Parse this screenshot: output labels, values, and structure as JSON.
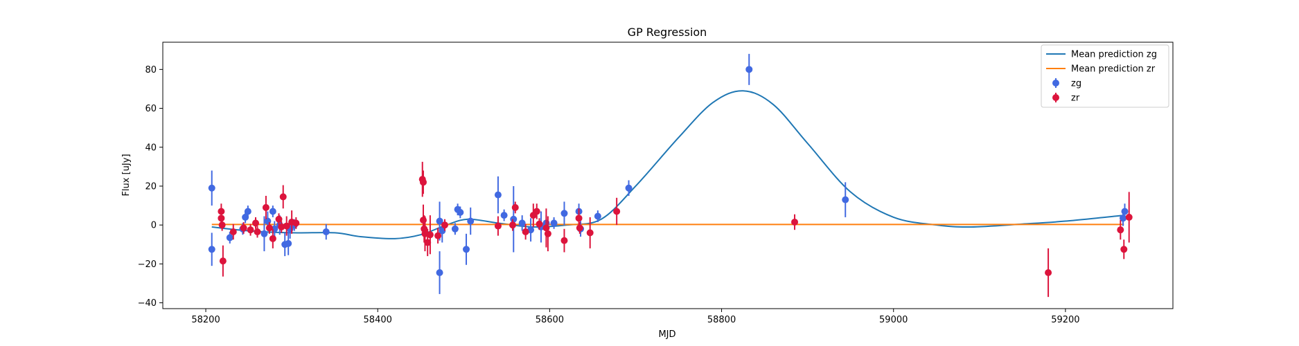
{
  "chart_data": {
    "type": "scatter",
    "title": "GP Regression",
    "xlabel": "MJD",
    "ylabel": "Flux [uJy]",
    "xlim": [
      58150,
      59325
    ],
    "ylim": [
      -43,
      94
    ],
    "xticks": [
      58200,
      58400,
      58600,
      58800,
      59000,
      59200
    ],
    "yticks": [
      -40,
      -20,
      0,
      20,
      40,
      60,
      80
    ],
    "grid": false,
    "legend_position": "top-right",
    "legend": [
      "Mean prediction zg",
      "Mean prediction zr",
      "zg",
      "zr"
    ],
    "series": [
      {
        "name": "Mean prediction zg",
        "kind": "line",
        "color": "#1f77b4",
        "x": [
          58207,
          58250,
          58300,
          58350,
          58380,
          58420,
          58450,
          58480,
          58505,
          58540,
          58580,
          58620,
          58660,
          58700,
          58750,
          58790,
          58825,
          58860,
          58900,
          58950,
          59000,
          59050,
          59090,
          59150,
          59200,
          59268
        ],
        "y": [
          -1,
          -3,
          -4,
          -4,
          -6,
          -7,
          -5,
          0,
          3,
          1,
          -1,
          0,
          3,
          20,
          45,
          63,
          69,
          62,
          42,
          17,
          4,
          0,
          -1,
          0.5,
          2,
          5
        ]
      },
      {
        "name": "Mean prediction zr",
        "kind": "line",
        "color": "#ff7f0e",
        "x": [
          58207,
          59268
        ],
        "y": [
          0.3,
          0.3
        ]
      },
      {
        "name": "zg",
        "kind": "errorbar",
        "color": "#4169e1",
        "points": [
          {
            "x": 58207,
            "y": 19,
            "err": 9
          },
          {
            "x": 58207,
            "y": -12.5,
            "err": 8.5
          },
          {
            "x": 58228,
            "y": -6.5,
            "err": 3
          },
          {
            "x": 58243,
            "y": -2,
            "err": 3
          },
          {
            "x": 58246,
            "y": 4,
            "err": 3
          },
          {
            "x": 58249,
            "y": 7,
            "err": 3
          },
          {
            "x": 58268,
            "y": -4.5,
            "err": 9
          },
          {
            "x": 58272,
            "y": 2,
            "err": 5
          },
          {
            "x": 58278,
            "y": 7,
            "err": 3
          },
          {
            "x": 58280,
            "y": -2,
            "err": 4
          },
          {
            "x": 58286,
            "y": 0,
            "err": 5
          },
          {
            "x": 58292,
            "y": -10,
            "err": 6
          },
          {
            "x": 58296,
            "y": -9.5,
            "err": 6
          },
          {
            "x": 58298,
            "y": -2,
            "err": 5
          },
          {
            "x": 58303,
            "y": 0,
            "err": 3
          },
          {
            "x": 58340,
            "y": -3.5,
            "err": 4
          },
          {
            "x": 58472,
            "y": -24.5,
            "err": 11
          },
          {
            "x": 58472,
            "y": 2,
            "err": 10
          },
          {
            "x": 58475,
            "y": -3,
            "err": 6
          },
          {
            "x": 58490,
            "y": -2,
            "err": 3
          },
          {
            "x": 58493,
            "y": 8,
            "err": 3
          },
          {
            "x": 58496,
            "y": 6.5,
            "err": 3
          },
          {
            "x": 58503,
            "y": -12.5,
            "err": 8
          },
          {
            "x": 58508,
            "y": 2,
            "err": 7
          },
          {
            "x": 58540,
            "y": 15.5,
            "err": 9.5
          },
          {
            "x": 58547,
            "y": 5,
            "err": 3
          },
          {
            "x": 58558,
            "y": 3,
            "err": 17
          },
          {
            "x": 58568,
            "y": 1,
            "err": 4
          },
          {
            "x": 58578,
            "y": -2.5,
            "err": 6
          },
          {
            "x": 58590,
            "y": -1,
            "err": 8
          },
          {
            "x": 58596,
            "y": 1,
            "err": 4
          },
          {
            "x": 58605,
            "y": 1,
            "err": 3
          },
          {
            "x": 58617,
            "y": 6,
            "err": 6
          },
          {
            "x": 58634,
            "y": 7,
            "err": 4
          },
          {
            "x": 58636,
            "y": -2,
            "err": 4
          },
          {
            "x": 58656,
            "y": 4.5,
            "err": 3
          },
          {
            "x": 58692,
            "y": 19,
            "err": 4
          },
          {
            "x": 58832,
            "y": 80,
            "err": 8
          },
          {
            "x": 58944,
            "y": 13,
            "err": 9
          },
          {
            "x": 59267,
            "y": 3.5,
            "err": 4
          },
          {
            "x": 59269,
            "y": 7,
            "err": 4
          }
        ]
      },
      {
        "name": "zr",
        "kind": "errorbar",
        "color": "#dc143c",
        "points": [
          {
            "x": 58218,
            "y": 7,
            "err": 4
          },
          {
            "x": 58218,
            "y": 3.5,
            "err": 4
          },
          {
            "x": 58219,
            "y": 0,
            "err": 3
          },
          {
            "x": 58220,
            "y": -18.5,
            "err": 8
          },
          {
            "x": 58232,
            "y": -3.5,
            "err": 4
          },
          {
            "x": 58244,
            "y": -1.5,
            "err": 3
          },
          {
            "x": 58252,
            "y": -2.5,
            "err": 3
          },
          {
            "x": 58258,
            "y": 1,
            "err": 3
          },
          {
            "x": 58260,
            "y": -3.5,
            "err": 3
          },
          {
            "x": 58270,
            "y": 9,
            "err": 6
          },
          {
            "x": 58274,
            "y": -1.5,
            "err": 3
          },
          {
            "x": 58278,
            "y": -7,
            "err": 5
          },
          {
            "x": 58285,
            "y": 3,
            "err": 3
          },
          {
            "x": 58288,
            "y": -1,
            "err": 3
          },
          {
            "x": 58290,
            "y": 14.5,
            "err": 6
          },
          {
            "x": 58294,
            "y": -0.5,
            "err": 5
          },
          {
            "x": 58300,
            "y": 1.5,
            "err": 6
          },
          {
            "x": 58305,
            "y": 1,
            "err": 3
          },
          {
            "x": 58452,
            "y": 23.5,
            "err": 9
          },
          {
            "x": 58453,
            "y": 22,
            "err": 6
          },
          {
            "x": 58453,
            "y": 2.5,
            "err": 8
          },
          {
            "x": 58454,
            "y": -2,
            "err": 7
          },
          {
            "x": 58455,
            "y": -4.5,
            "err": 9
          },
          {
            "x": 58458,
            "y": -9,
            "err": 7
          },
          {
            "x": 58461,
            "y": -5,
            "err": 10
          },
          {
            "x": 58470,
            "y": -5.5,
            "err": 4
          },
          {
            "x": 58478,
            "y": 0,
            "err": 3
          },
          {
            "x": 58540,
            "y": -0.5,
            "err": 5
          },
          {
            "x": 58557,
            "y": 0,
            "err": 3
          },
          {
            "x": 58560,
            "y": 9,
            "err": 3
          },
          {
            "x": 58572,
            "y": -3.5,
            "err": 4
          },
          {
            "x": 58581,
            "y": 5,
            "err": 6
          },
          {
            "x": 58585,
            "y": 7,
            "err": 4
          },
          {
            "x": 58588,
            "y": 0.5,
            "err": 3
          },
          {
            "x": 58596,
            "y": -1.5,
            "err": 10
          },
          {
            "x": 58598,
            "y": -4.5,
            "err": 9
          },
          {
            "x": 58617,
            "y": -8,
            "err": 6
          },
          {
            "x": 58634,
            "y": 3.5,
            "err": 5
          },
          {
            "x": 58635,
            "y": -1.5,
            "err": 3
          },
          {
            "x": 58647,
            "y": -4,
            "err": 8
          },
          {
            "x": 58678,
            "y": 7,
            "err": 7
          },
          {
            "x": 58885,
            "y": 1.5,
            "err": 4
          },
          {
            "x": 59180,
            "y": -24.5,
            "err": 12.5
          },
          {
            "x": 59264,
            "y": -2.5,
            "err": 5
          },
          {
            "x": 59268,
            "y": -12.5,
            "err": 5
          },
          {
            "x": 59274,
            "y": 4,
            "err": 13
          }
        ]
      }
    ]
  }
}
